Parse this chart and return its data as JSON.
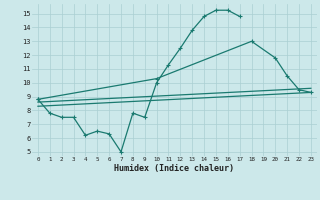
{
  "xlabel": "Humidex (Indice chaleur)",
  "background_color": "#cce8ea",
  "grid_color": "#aacfd2",
  "line_color": "#1a7a70",
  "xlim": [
    -0.5,
    23.5
  ],
  "ylim": [
    4.7,
    15.7
  ],
  "yticks": [
    5,
    6,
    7,
    8,
    9,
    10,
    11,
    12,
    13,
    14,
    15
  ],
  "xticks": [
    0,
    1,
    2,
    3,
    4,
    5,
    6,
    7,
    8,
    9,
    10,
    11,
    12,
    13,
    14,
    15,
    16,
    17,
    18,
    19,
    20,
    21,
    22,
    23
  ],
  "curve1_x": [
    0,
    1,
    2,
    3,
    4,
    5,
    6,
    7,
    8,
    9,
    10,
    11,
    12,
    13,
    14,
    15,
    16,
    17
  ],
  "curve1_y": [
    8.8,
    7.8,
    7.5,
    7.5,
    6.2,
    6.5,
    6.3,
    5.0,
    7.8,
    7.5,
    10.0,
    11.3,
    12.5,
    13.8,
    14.8,
    15.25,
    15.25,
    14.8
  ],
  "curve2_x": [
    0,
    10,
    18,
    20,
    21,
    22,
    23
  ],
  "curve2_y": [
    8.8,
    10.3,
    13.0,
    11.8,
    10.5,
    9.5,
    9.3
  ],
  "curve3_x": [
    0,
    23
  ],
  "curve3_y": [
    8.3,
    9.3
  ],
  "curve4_x": [
    0,
    23
  ],
  "curve4_y": [
    8.6,
    9.6
  ]
}
